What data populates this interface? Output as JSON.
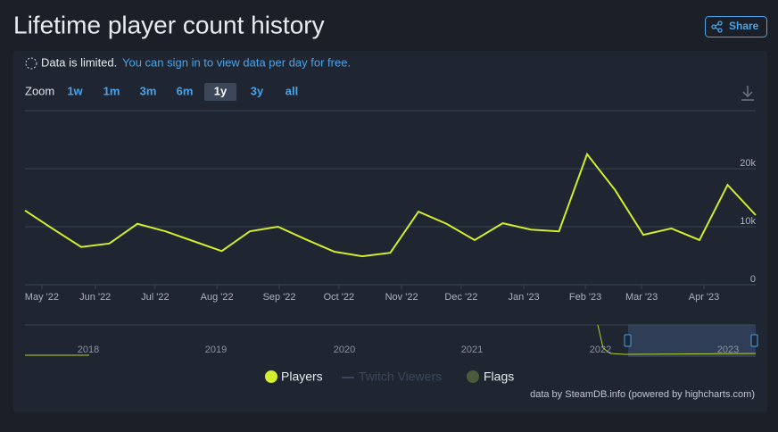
{
  "header": {
    "title": "Lifetime player count history",
    "share": "Share"
  },
  "notice": {
    "text": "Data is limited.",
    "link": "You can sign in to view data per day for free."
  },
  "zoom": {
    "label": "Zoom",
    "options": [
      "1w",
      "1m",
      "3m",
      "6m",
      "1y",
      "3y",
      "all"
    ],
    "active": 4
  },
  "chart_data": {
    "type": "line",
    "series": [
      {
        "name": "Players",
        "color": "#d2ee2c",
        "values": [
          12800,
          9600,
          6500,
          7100,
          10500,
          9200,
          7500,
          5800,
          9200,
          10000,
          7800,
          5700,
          4900,
          5500,
          12600,
          10500,
          7700,
          10600,
          9500,
          9200,
          22500,
          16300,
          8600,
          9700,
          7700,
          17200,
          12000
        ]
      }
    ],
    "xlim": [
      0,
      26
    ],
    "xticks": [
      {
        "value": 0.6,
        "label": "May '22"
      },
      {
        "value": 2.5,
        "label": "Jun '22"
      },
      {
        "value": 4.63,
        "label": "Jul '22"
      },
      {
        "value": 6.83,
        "label": "Aug '22"
      },
      {
        "value": 9.05,
        "label": "Sep '22"
      },
      {
        "value": 11.17,
        "label": "Oct '22"
      },
      {
        "value": 13.4,
        "label": "Nov '22"
      },
      {
        "value": 15.52,
        "label": "Dec '22"
      },
      {
        "value": 17.75,
        "label": "Jan '23"
      },
      {
        "value": 19.94,
        "label": "Feb '23"
      },
      {
        "value": 21.94,
        "label": "Mar '23"
      },
      {
        "value": 24.16,
        "label": "Apr '23"
      }
    ],
    "ylim": [
      0,
      30000
    ],
    "yticks": [
      0,
      {
        "value": 10000,
        "label": "10k"
      },
      {
        "value": 20000,
        "label": "20k"
      }
    ],
    "grid": true,
    "legend_extra": [
      {
        "name": "Twitch Viewers",
        "color": "#3b4758"
      },
      {
        "name": "Flags",
        "color": "#4a5a3a"
      }
    ]
  },
  "navigator": {
    "labels": [
      "2018",
      "2019",
      "2020",
      "2021",
      "2022",
      "2023"
    ]
  },
  "credits": "data by SteamDB.info (powered by highcharts.com)"
}
